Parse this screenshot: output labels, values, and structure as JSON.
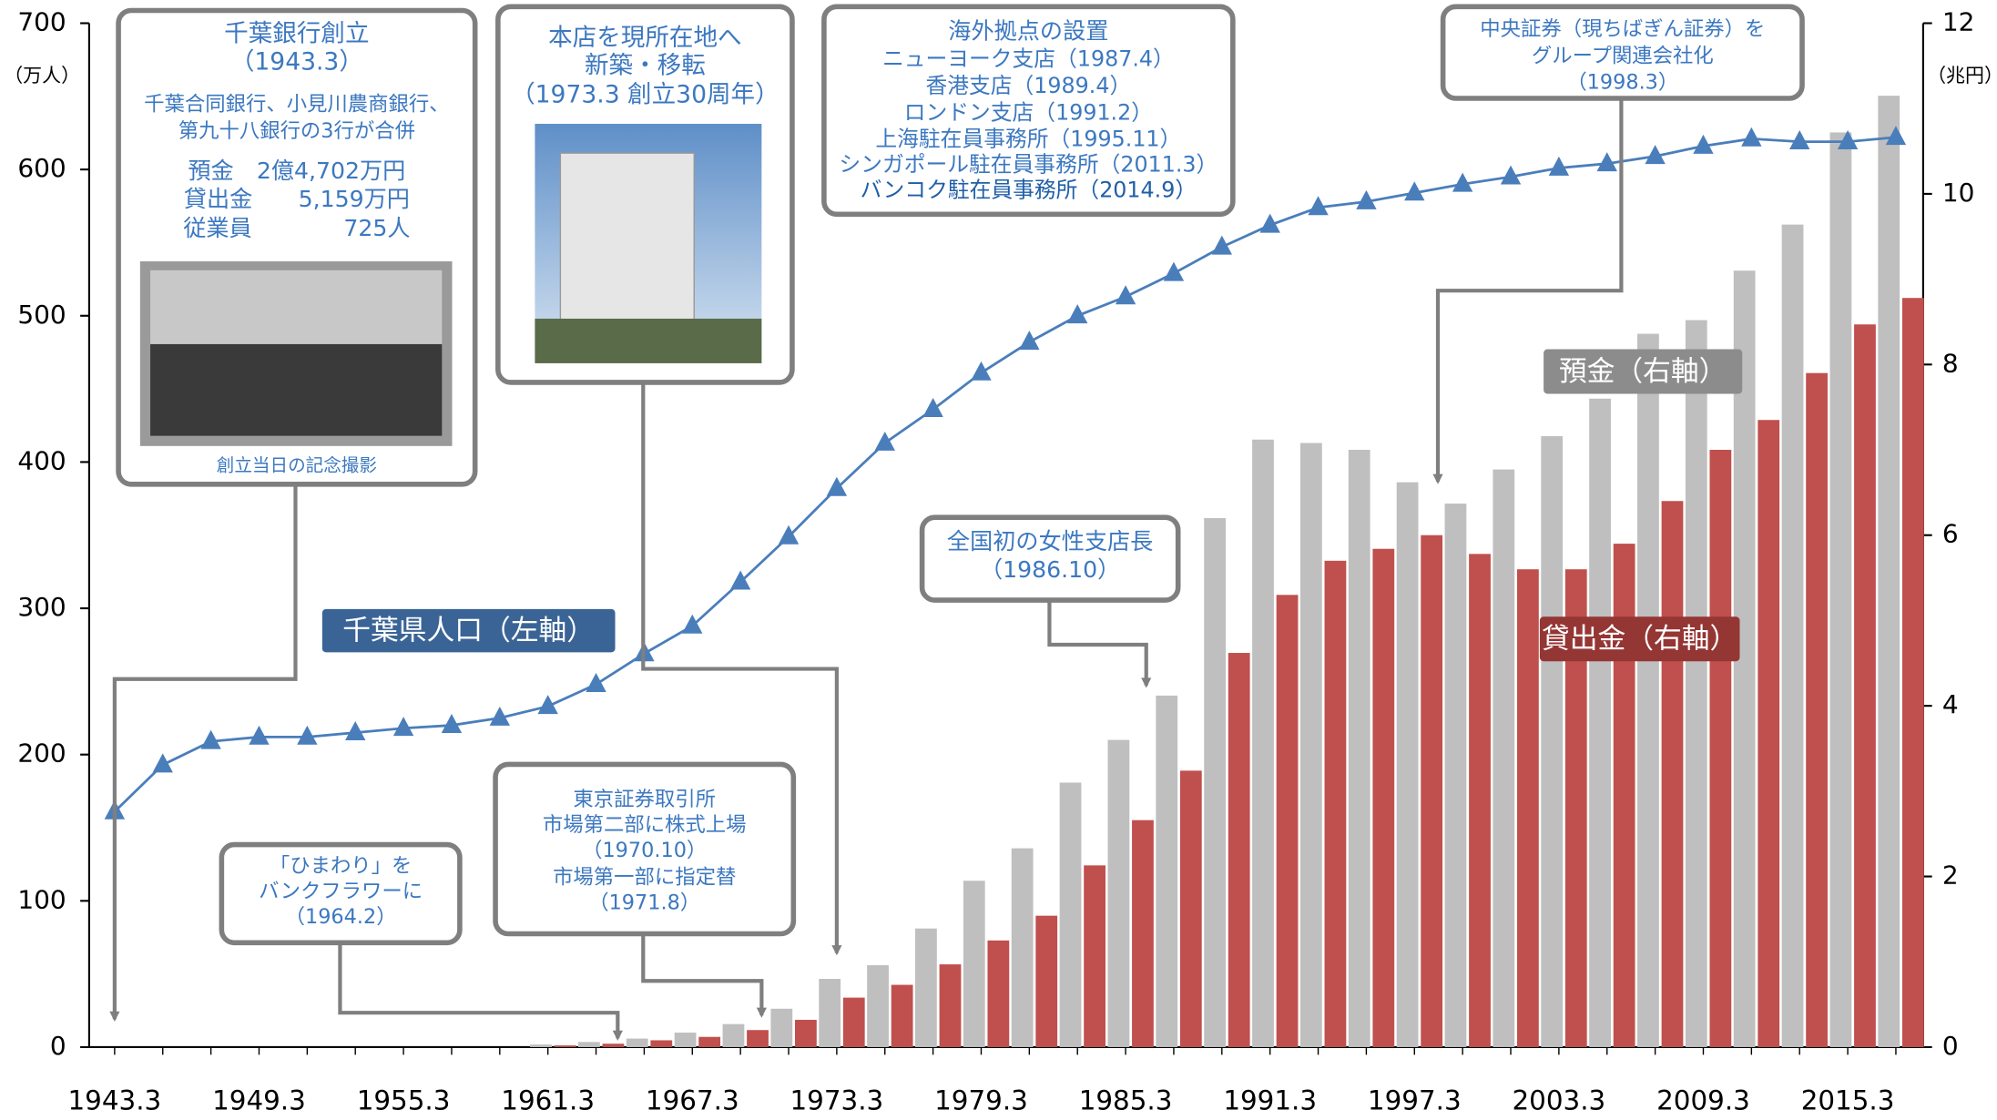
{
  "chart_data": {
    "type": "combo",
    "categories": [
      "1943.3",
      null,
      null,
      "1949.3",
      null,
      null,
      "1955.3",
      null,
      null,
      "1961.3",
      null,
      null,
      "1967.3",
      null,
      null,
      "1973.3",
      null,
      null,
      "1979.3",
      null,
      null,
      "1985.3",
      null,
      null,
      "1991.3",
      null,
      null,
      "1997.3",
      null,
      null,
      "2003.3",
      null,
      null,
      "2009.3",
      null,
      null,
      "2015.3",
      null
    ],
    "y_label": "（万人）",
    "y2_label": "（兆円）",
    "ylim": [
      0,
      700
    ],
    "yticks": [
      0,
      100,
      200,
      300,
      400,
      500,
      600,
      700
    ],
    "y2lim": [
      0,
      12
    ],
    "y2ticks": [
      0,
      2,
      4,
      6,
      8,
      10,
      12
    ],
    "series": [
      {
        "name": "預金（右軸）",
        "type": "bar",
        "axis": "y2",
        "color": "#bfbfbf",
        "label_color": "#8c8c8c",
        "values": [
          0,
          0,
          0,
          0,
          0,
          0,
          0,
          0,
          0,
          0.03,
          0.06,
          0.1,
          0.17,
          0.27,
          0.45,
          0.8,
          0.96,
          1.39,
          1.95,
          2.33,
          3.1,
          3.6,
          4.12,
          6.2,
          7.12,
          7.08,
          7.0,
          6.62,
          6.37,
          6.77,
          7.16,
          7.6,
          8.36,
          8.52,
          9.1,
          9.64,
          10.72,
          11.15
        ]
      },
      {
        "name": "貸出金（右軸）",
        "type": "bar",
        "axis": "y2",
        "color": "#c0504d",
        "label_color": "#943634",
        "values": [
          0,
          0,
          0,
          0,
          0,
          0,
          0,
          0,
          0,
          0.02,
          0.04,
          0.08,
          0.12,
          0.2,
          0.32,
          0.58,
          0.73,
          0.97,
          1.25,
          1.54,
          2.13,
          2.66,
          3.24,
          4.62,
          5.3,
          5.7,
          5.84,
          6.0,
          5.78,
          5.6,
          5.6,
          5.9,
          6.4,
          7.0,
          7.35,
          7.9,
          8.47,
          8.78
        ]
      },
      {
        "name": "千葉県人口（左軸）",
        "type": "line",
        "axis": "y",
        "color": "#4a7ebb",
        "label_color": "#3b6496",
        "values": [
          161,
          193,
          209,
          212,
          212,
          215,
          218,
          220,
          225,
          233,
          248,
          269,
          288,
          318,
          349,
          382,
          413,
          436,
          461,
          482,
          500,
          513,
          529,
          547,
          562,
          574,
          578,
          584,
          590,
          595,
          601,
          604,
          609,
          616,
          621,
          619,
          619,
          622
        ]
      }
    ],
    "annotations": [
      {
        "lines": [
          "千葉銀行創立",
          "（1943.3）",
          "千葉合同銀行、小見川農商銀行、",
          "第九十八銀行の3行が合併",
          "預金　2億4,702万円",
          "貸出金　　5,159万円",
          "従業員　　　　725人"
        ],
        "caption": "創立当日の記念撮影"
      },
      {
        "lines": [
          "本店を現所在地へ",
          "新築・移転",
          "（1973.3 創立30周年）"
        ]
      },
      {
        "lines": [
          "海外拠点の設置",
          "ニューヨーク支店（1987.4）",
          "香港支店（1989.4）",
          "ロンドン支店（1991.2）",
          "上海駐在員事務所（1995.11）",
          "シンガポール駐在員事務所（2011.3）",
          "バンコク駐在員事務所（2014.9）"
        ]
      },
      {
        "lines": [
          "中央証券（現ちばぎん証券）を",
          "グループ関連会社化",
          "（1998.3）"
        ]
      },
      {
        "lines": [
          "全国初の女性支店長",
          "（1986.10）"
        ]
      },
      {
        "lines": [
          "東京証券取引所",
          "市場第二部に株式上場",
          "（1970.10）",
          "市場第一部に指定替",
          "（1971.8）"
        ]
      },
      {
        "lines": [
          "「ひまわり」を",
          "バンクフラワーに",
          "（1964.2）"
        ]
      }
    ]
  }
}
